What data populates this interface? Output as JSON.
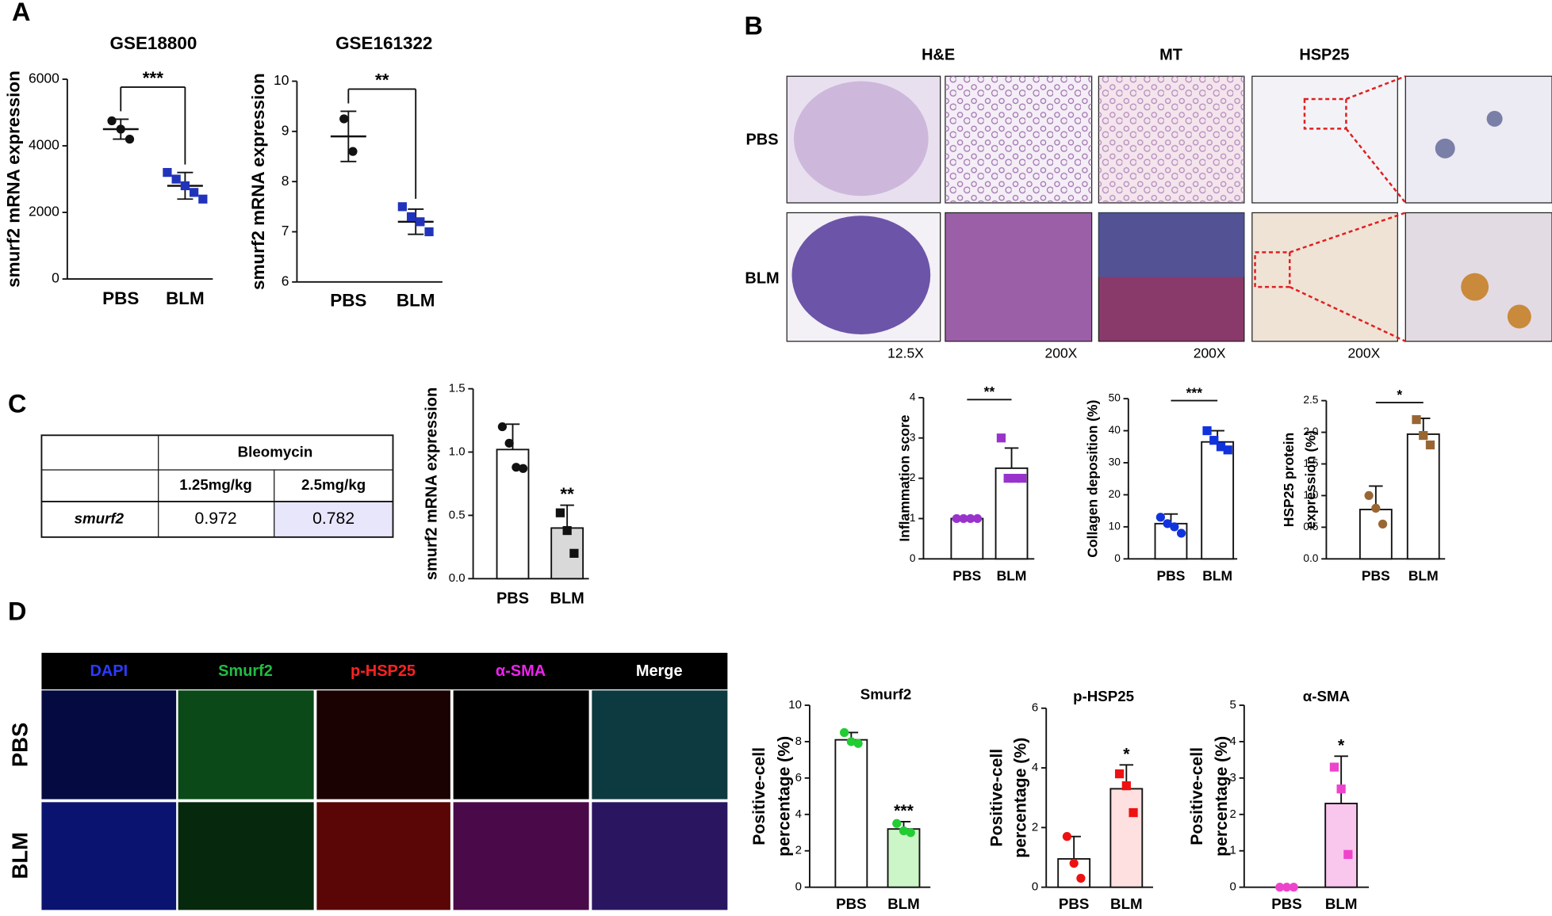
{
  "panel_letters": [
    "A",
    "B",
    "C",
    "D"
  ],
  "histology": {
    "columns": [
      "H&E",
      "MT",
      "HSP25"
    ],
    "rows": [
      "PBS",
      "BLM"
    ],
    "magnifications": [
      "12.5X",
      "200X",
      "200X",
      "200X"
    ]
  },
  "immunofluorescence": {
    "channels": [
      "DAPI",
      "Smurf2",
      "p-HSP25",
      "α-SMA",
      "Merge"
    ],
    "rows": [
      "PBS",
      "BLM"
    ]
  },
  "table": {
    "header": "Bleomycin",
    "columns": [
      "1.25mg/kg",
      "2.5mg/kg"
    ],
    "row_label": "smurf2",
    "values": [
      0.972,
      0.782
    ]
  },
  "chart_data": [
    {
      "type": "dot",
      "title": "GSE18800",
      "y_label": [
        "smurf2 mRNA expression"
      ],
      "ylim": [
        0,
        6000
      ],
      "yticks": [
        0,
        2000,
        4000,
        6000
      ],
      "significance": "***",
      "sig_style": "bracket",
      "groups": [
        {
          "name": "PBS",
          "color": "#111111",
          "marker": "circle",
          "points": [
            4750,
            4500,
            4200
          ],
          "mean": 4500,
          "sd": 300
        },
        {
          "name": "BLM",
          "color": "#2233bb",
          "marker": "square",
          "points": [
            3200,
            3000,
            2800,
            2600,
            2400
          ],
          "mean": 2800,
          "sd": 400
        }
      ]
    },
    {
      "type": "dot",
      "title": "GSE161322",
      "y_label": [
        "smurf2 mRNA expression"
      ],
      "ylim": [
        6,
        10
      ],
      "yticks": [
        6,
        7,
        8,
        9,
        10
      ],
      "significance": "**",
      "sig_style": "bracket",
      "groups": [
        {
          "name": "PBS",
          "color": "#111111",
          "marker": "circle",
          "points": [
            9.25,
            8.6
          ],
          "mean": 8.9,
          "sd": 0.5
        },
        {
          "name": "BLM",
          "color": "#2233bb",
          "marker": "square",
          "points": [
            7.5,
            7.3,
            7.2,
            7.0
          ],
          "mean": 7.2,
          "sd": 0.25
        }
      ]
    },
    {
      "type": "bar",
      "y_label": [
        "smurf2 mRNA expression"
      ],
      "ylim": [
        0,
        1.5
      ],
      "yticks": [
        {
          "value": 0,
          "label": "0.0"
        },
        0.5,
        {
          "value": 1,
          "label": "1.0"
        },
        1.5
      ],
      "significance": "**",
      "sig_style": "above",
      "groups": [
        {
          "name": "PBS",
          "color": "#111111",
          "fill": "#ffffff",
          "marker": "circle",
          "points": [
            1.2,
            1.07,
            0.88,
            0.87
          ],
          "mean": 1.02,
          "sd": 0.2
        },
        {
          "name": "BLM",
          "color": "#111111",
          "fill": "#d9d9d9",
          "marker": "square",
          "points": [
            0.52,
            0.38,
            0.2
          ],
          "mean": 0.4,
          "sd": 0.18
        }
      ]
    },
    {
      "type": "bar",
      "y_label": [
        "Inflammation score"
      ],
      "ylim": [
        0,
        4
      ],
      "yticks": [
        0,
        1,
        2,
        3,
        4
      ],
      "significance": "**",
      "sig_style": "line",
      "groups": [
        {
          "name": "PBS",
          "color": "#9933cc",
          "fill": "#ffffff",
          "marker": "circle",
          "points": [
            1,
            1,
            1,
            1
          ],
          "mean": 1,
          "sd": 0
        },
        {
          "name": "BLM",
          "color": "#9933cc",
          "fill": "#ffffff",
          "marker": "square",
          "points": [
            3,
            2,
            2,
            2
          ],
          "mean": 2.25,
          "sd": 0.5
        }
      ]
    },
    {
      "type": "bar",
      "y_label": [
        "Collagen deposition (%)"
      ],
      "ylim": [
        0,
        50
      ],
      "yticks": [
        0,
        10,
        20,
        30,
        40,
        50
      ],
      "significance": "***",
      "sig_style": "line",
      "groups": [
        {
          "name": "PBS",
          "color": "#1133dd",
          "fill": "#ffffff",
          "marker": "circle",
          "points": [
            13,
            11,
            10,
            8
          ],
          "mean": 11,
          "sd": 3
        },
        {
          "name": "BLM",
          "color": "#1133dd",
          "fill": "#ffffff",
          "marker": "square",
          "points": [
            40,
            37,
            35,
            34
          ],
          "mean": 36.5,
          "sd": 3.5
        }
      ]
    },
    {
      "type": "bar",
      "y_label": [
        "HSP25 protein",
        "expression (%)"
      ],
      "ylim": [
        0,
        2.5
      ],
      "yticks": [
        {
          "value": 0,
          "label": "0.0"
        },
        0.5,
        {
          "value": 1,
          "label": "1.0"
        },
        1.5,
        {
          "value": 2,
          "label": "2.0"
        },
        2.5
      ],
      "significance": "*",
      "sig_style": "line",
      "groups": [
        {
          "name": "PBS",
          "color": "#996633",
          "fill": "#ffffff",
          "marker": "circle",
          "points": [
            1.0,
            0.8,
            0.55
          ],
          "mean": 0.78,
          "sd": 0.37
        },
        {
          "name": "BLM",
          "color": "#996633",
          "fill": "#ffffff",
          "marker": "square",
          "points": [
            2.2,
            1.95,
            1.8
          ],
          "mean": 1.97,
          "sd": 0.25
        }
      ]
    },
    {
      "type": "bar",
      "title": "Smurf2",
      "y_label": [
        "Positive-cell",
        "percentage (%)"
      ],
      "ylim": [
        0,
        10
      ],
      "yticks": [
        0,
        2,
        4,
        6,
        8,
        10
      ],
      "significance": "***",
      "sig_style": "above",
      "groups": [
        {
          "name": "PBS",
          "color": "#22cc33",
          "fill": "#ffffff",
          "marker": "circle",
          "points": [
            8.5,
            8.0,
            7.9
          ],
          "mean": 8.1,
          "sd": 0.4
        },
        {
          "name": "BLM",
          "color": "#22cc33",
          "fill": "#ccf5c8",
          "marker": "circle",
          "points": [
            3.5,
            3.1,
            3.0
          ],
          "mean": 3.2,
          "sd": 0.4
        }
      ]
    },
    {
      "type": "bar",
      "title": "p-HSP25",
      "y_label": [
        "Positive-cell",
        "percentage (%)"
      ],
      "ylim": [
        0,
        6
      ],
      "yticks": [
        0,
        2,
        4,
        6
      ],
      "significance": "*",
      "sig_style": "above",
      "groups": [
        {
          "name": "PBS",
          "color": "#ee1111",
          "fill": "#ffffff",
          "marker": "circle",
          "points": [
            1.7,
            0.8,
            0.3
          ],
          "mean": 0.95,
          "sd": 0.75
        },
        {
          "name": "BLM",
          "color": "#ee1111",
          "fill": "#ffe0e0",
          "marker": "square",
          "points": [
            3.8,
            3.4,
            2.5
          ],
          "mean": 3.3,
          "sd": 0.8
        }
      ]
    },
    {
      "type": "bar",
      "title": "α-SMA",
      "y_label": [
        "Positive-cell",
        "percentage (%)"
      ],
      "ylim": [
        0,
        5
      ],
      "yticks": [
        0,
        1,
        2,
        3,
        4,
        5
      ],
      "significance": "*",
      "sig_style": "above",
      "groups": [
        {
          "name": "PBS",
          "color": "#ee44cc",
          "fill": "#ffffff",
          "marker": "circle",
          "points": [
            0,
            0,
            0
          ],
          "mean": 0,
          "sd": 0
        },
        {
          "name": "BLM",
          "color": "#ee44cc",
          "fill": "#f9c6ee",
          "marker": "square",
          "points": [
            3.3,
            2.7,
            0.9
          ],
          "mean": 2.3,
          "sd": 1.3
        }
      ]
    }
  ]
}
